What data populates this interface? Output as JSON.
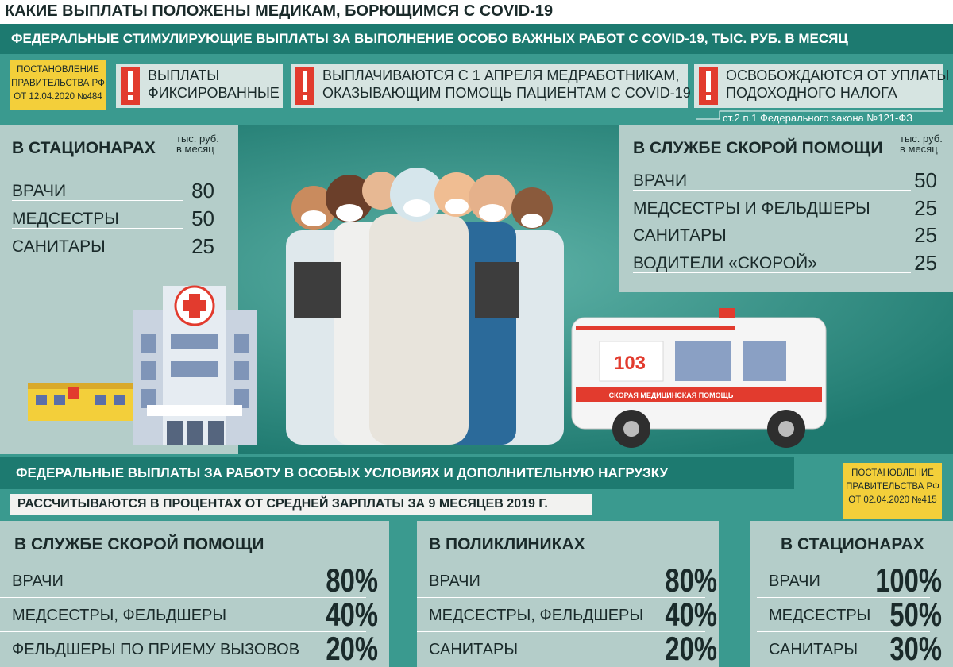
{
  "header": {
    "title": "КАКИЕ ВЫПЛАТЫ ПОЛОЖЕНЫ МЕДИКАМ, БОРЮЩИМСЯ С COVID-19"
  },
  "stimulus": {
    "title": "ФЕДЕРАЛЬНЫЕ СТИМУЛИРУЮЩИЕ ВЫПЛАТЫ ЗА ВЫПОЛНЕНИЕ ОСОБО ВАЖНЫХ РАБОТ С COVID-19, ТЫС. РУБ. В МЕСЯЦ",
    "decree": [
      "ПОСТАНОВЛЕНИЕ",
      "ПРАВИТЕЛЬСТВА РФ",
      "ОТ 12.04.2020 №484"
    ],
    "notes": [
      [
        "ВЫПЛАТЫ",
        "ФИКСИРОВАННЫЕ"
      ],
      [
        "ВЫПЛАЧИВАЮТСЯ С 1 АПРЕЛЯ МЕДРАБОТНИКАМ,",
        "ОКАЗЫВАЮЩИМ ПОМОЩЬ ПАЦИЕНТАМ С COVID-19"
      ],
      [
        "ОСВОБОЖДАЮТСЯ ОТ УПЛАТЫ",
        "ПОДОХОДНОГО НАЛОГА"
      ]
    ],
    "footnote": "ст.2 п.1 Федерального закона №121-ФЗ",
    "hospitals": {
      "title": "В СТАЦИОНАРАХ",
      "unit": [
        "тыс. руб.",
        "в месяц"
      ],
      "rows": [
        {
          "role": "ВРАЧИ",
          "amount": 80
        },
        {
          "role": "МЕДСЕСТРЫ",
          "amount": 50
        },
        {
          "role": "САНИТАРЫ",
          "amount": 25
        }
      ]
    },
    "ambulance": {
      "title": "В СЛУЖБЕ СКОРОЙ ПОМОЩИ",
      "unit": [
        "тыс. руб.",
        "в месяц"
      ],
      "rows": [
        {
          "role": "ВРАЧИ",
          "amount": 50
        },
        {
          "role": "МЕДСЕСТРЫ И ФЕЛЬДШЕРЫ",
          "amount": 25
        },
        {
          "role": "САНИТАРЫ",
          "amount": 25
        },
        {
          "role": "ВОДИТЕЛИ «СКОРОЙ»",
          "amount": 25
        }
      ]
    }
  },
  "illustration": {
    "ambulance_number": "103",
    "ambulance_label": "СКОРАЯ МЕДИЦИНСКАЯ ПОМОЩЬ"
  },
  "special": {
    "title": "ФЕДЕРАЛЬНЫЕ ВЫПЛАТЫ ЗА РАБОТУ В ОСОБЫХ УСЛОВИЯХ И ДОПОЛНИТЕЛЬНУЮ НАГРУЗКУ",
    "subtitle": "РАССЧИТЫВАЮТСЯ В ПРОЦЕНТАХ ОТ СРЕДНЕЙ ЗАРПЛАТЫ ЗА 9 МЕСЯЦЕВ 2019 Г.",
    "decree": [
      "ПОСТАНОВЛЕНИЕ",
      "ПРАВИТЕЛЬСТВА РФ",
      "ОТ 02.04.2020 №415"
    ],
    "columns": [
      {
        "title": "В СЛУЖБЕ СКОРОЙ ПОМОЩИ",
        "rows": [
          {
            "role": "ВРАЧИ",
            "share": "80%"
          },
          {
            "role": "МЕДСЕСТРЫ, ФЕЛЬДШЕРЫ",
            "share": "40%"
          },
          {
            "role": "ФЕЛЬДШЕРЫ ПО ПРИЕМУ ВЫЗОВОВ",
            "share": "20%"
          }
        ]
      },
      {
        "title": "В ПОЛИКЛИНИКАХ",
        "rows": [
          {
            "role": "ВРАЧИ",
            "share": "80%"
          },
          {
            "role": "МЕДСЕСТРЫ, ФЕЛЬДШЕРЫ",
            "share": "40%"
          },
          {
            "role": "САНИТАРЫ",
            "share": "20%"
          }
        ]
      },
      {
        "title": "В СТАЦИОНАРАХ",
        "rows": [
          {
            "role": "ВРАЧИ",
            "share": "100%"
          },
          {
            "role": "МЕДСЕСТРЫ",
            "share": "50%"
          },
          {
            "role": "САНИТАРЫ",
            "share": "30%"
          }
        ]
      }
    ]
  }
}
